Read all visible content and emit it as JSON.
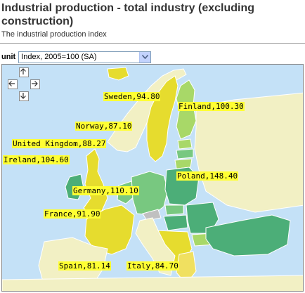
{
  "header": {
    "title": "Industrial production - total industry (excluding construction)",
    "subtitle": "The industrial production index"
  },
  "controls": {
    "unit_label": "unit",
    "unit_selected": "Index, 2005=100 (SA)"
  },
  "icons": {
    "nav": [
      "arrow-up-icon",
      "arrow-left-icon",
      "arrow-right-icon",
      "arrow-down-icon"
    ],
    "dropdown": "chevron-down-icon"
  },
  "colors": {
    "sea": "#c4e1f7",
    "non_eu": "#f2f0c4",
    "no_data": "#c0c0c0",
    "low": "#f0e060",
    "mid_low": "#e6dc2e",
    "mid": "#a8d868",
    "mid_high": "#78c880",
    "high": "#4cae78",
    "label_bg": "#ffff33"
  },
  "chart_data": {
    "type": "map",
    "title": "Industrial production - total industry (excluding construction)",
    "unit": "Index, 2005=100 (SA)",
    "regions": [
      {
        "name": "Sweden",
        "value": 94.8,
        "label": "Sweden,94.80"
      },
      {
        "name": "Finland",
        "value": 100.3,
        "label": "Finland,100.30"
      },
      {
        "name": "Norway",
        "value": 87.1,
        "label": "Norway,87.10"
      },
      {
        "name": "United Kingdom",
        "value": 88.27,
        "label": "United Kingdom,88.27"
      },
      {
        "name": "Ireland",
        "value": 104.6,
        "label": "Ireland,104.60"
      },
      {
        "name": "Poland",
        "value": 148.4,
        "label": "Poland,148.40"
      },
      {
        "name": "Germany",
        "value": 110.1,
        "label": "Germany,110.10"
      },
      {
        "name": "France",
        "value": 91.9,
        "label": "France,91.90"
      },
      {
        "name": "Spain",
        "value": 81.14,
        "label": "Spain,81.14"
      },
      {
        "name": "Italy",
        "value": 84.7,
        "label": "Italy,84.70"
      }
    ]
  }
}
